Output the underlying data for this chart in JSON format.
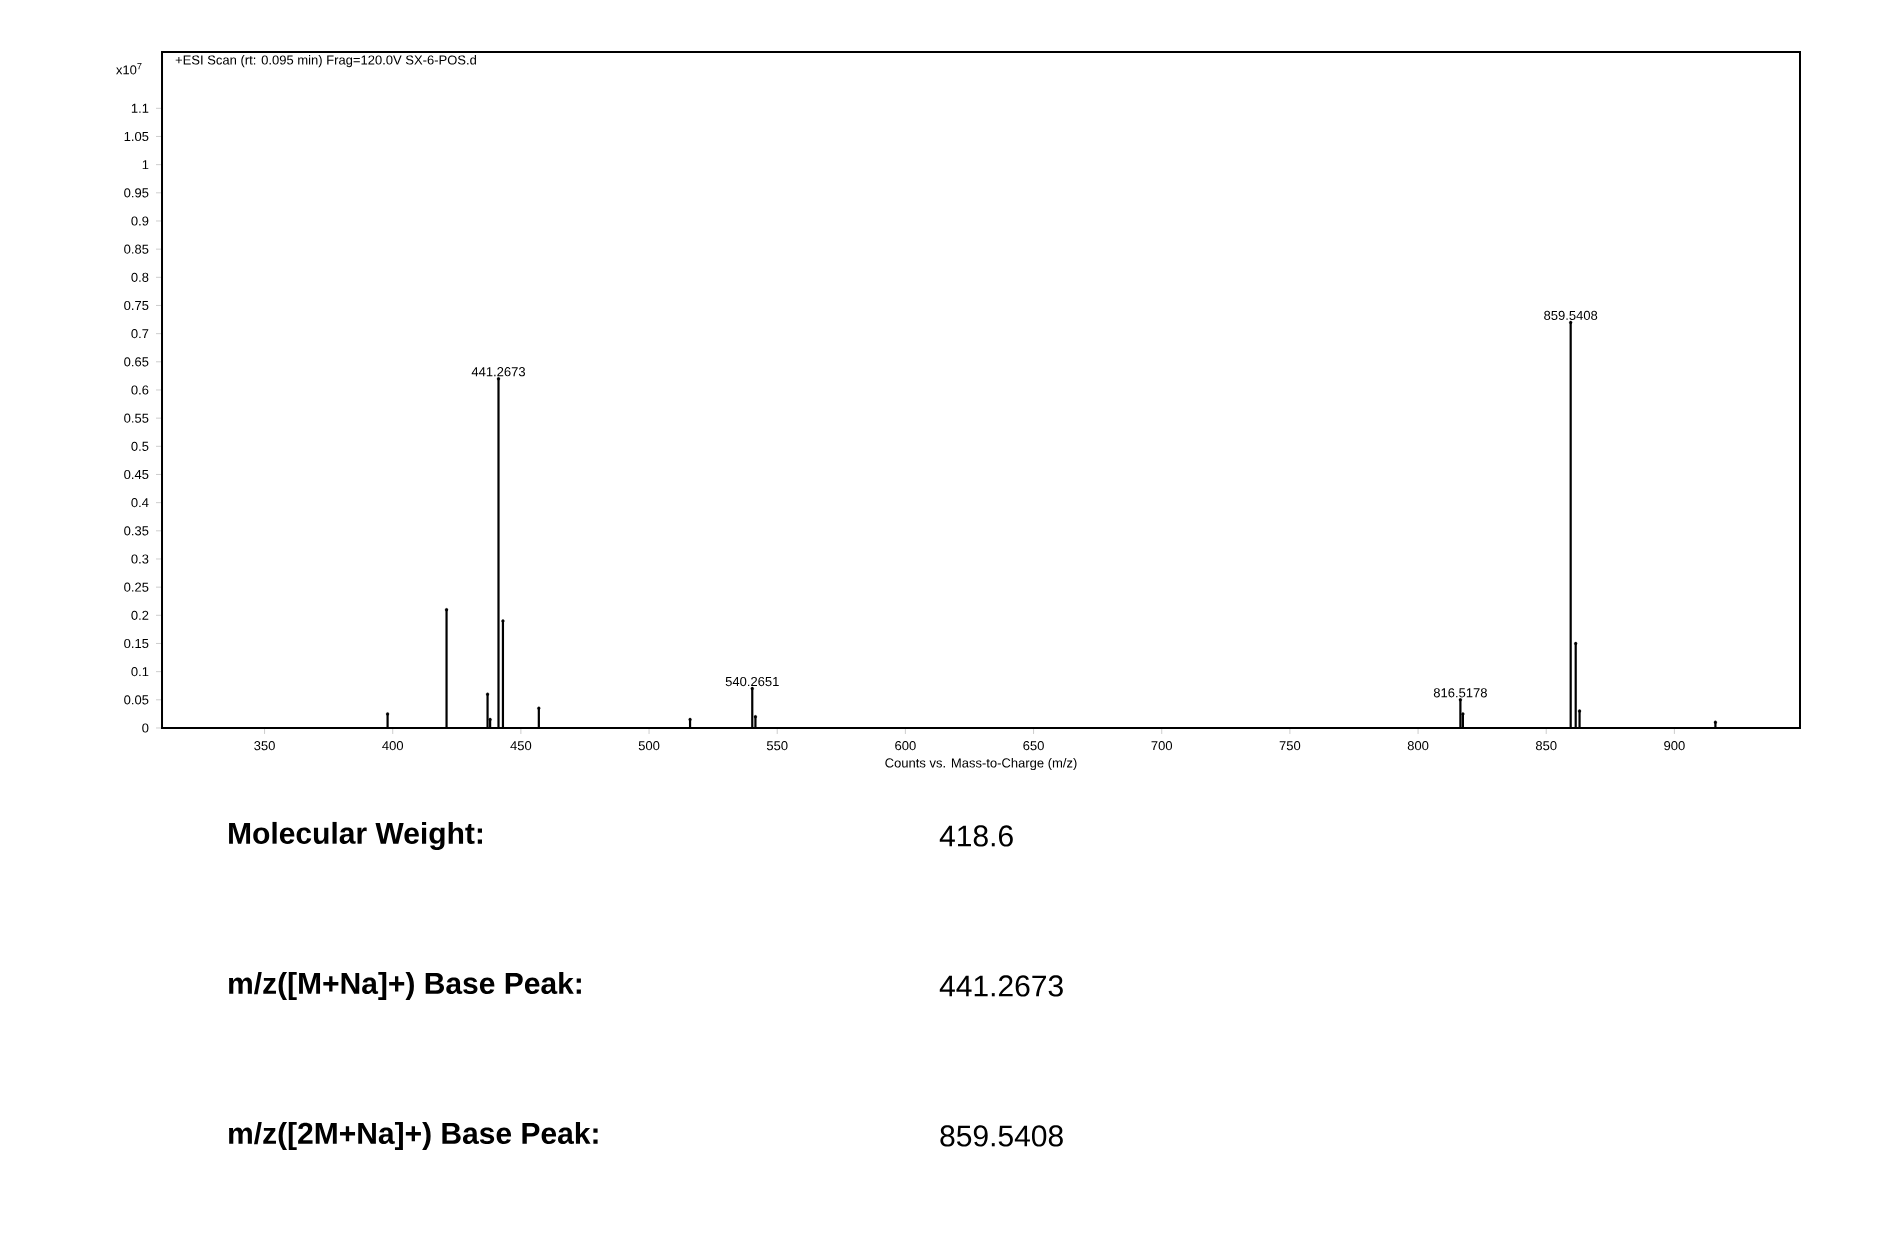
{
  "chart_data": {
    "type": "lollipop",
    "title": "+ESI Scan (rt: 0.095 min) Frag=120.0V SX-6-POS.d",
    "xlabel": "Counts vs. Mass-to-Charge (m/z)",
    "ylabel": "x10$^{7}$",
    "series": [
      {
        "color": "#000000",
        "x": [
          398,
          421,
          437,
          438,
          441.2673,
          443,
          457,
          516,
          540.2651,
          541.5,
          816.5178,
          817.5,
          859.5408,
          861.5,
          863,
          916
        ],
        "values": [
          0.025,
          0.21,
          0.06,
          0.015,
          0.62,
          0.19,
          0.035,
          0.015,
          0.07,
          0.02,
          0.05,
          0.025,
          0.72,
          0.15,
          0.03,
          0.01
        ]
      }
    ],
    "xlim": [
      310,
      949
    ],
    "ylim": [
      0,
      1.2
    ],
    "xticks": [
      350,
      400,
      450,
      500,
      550,
      600,
      650,
      700,
      750,
      800,
      850,
      900
    ],
    "yticks": [
      0,
      0.05,
      0.1,
      0.15,
      0.2,
      0.25,
      0.3,
      0.35,
      0.4,
      0.45,
      0.5,
      0.55,
      0.6,
      0.65,
      0.7,
      0.75,
      0.8,
      0.85,
      0.9,
      0.95,
      1,
      1.05,
      1.1
    ],
    "annotations": [
      {
        "text": "441.2673",
        "x": 441.2673,
        "y": 0.62
      },
      {
        "text": "540.2651",
        "x": 540.2651,
        "y": 0.07
      },
      {
        "text": "816.5178",
        "x": 816.5178,
        "y": 0.05
      },
      {
        "text": "859.5408",
        "x": 859.5408,
        "y": 0.72
      },
      "Molecular Weight:",
      "418.6",
      "m/z([M+Na]+) Base Peak:",
      "441.2673",
      "m/z([2M+Na]+) Base Peak:",
      "859.5408"
    ]
  }
}
